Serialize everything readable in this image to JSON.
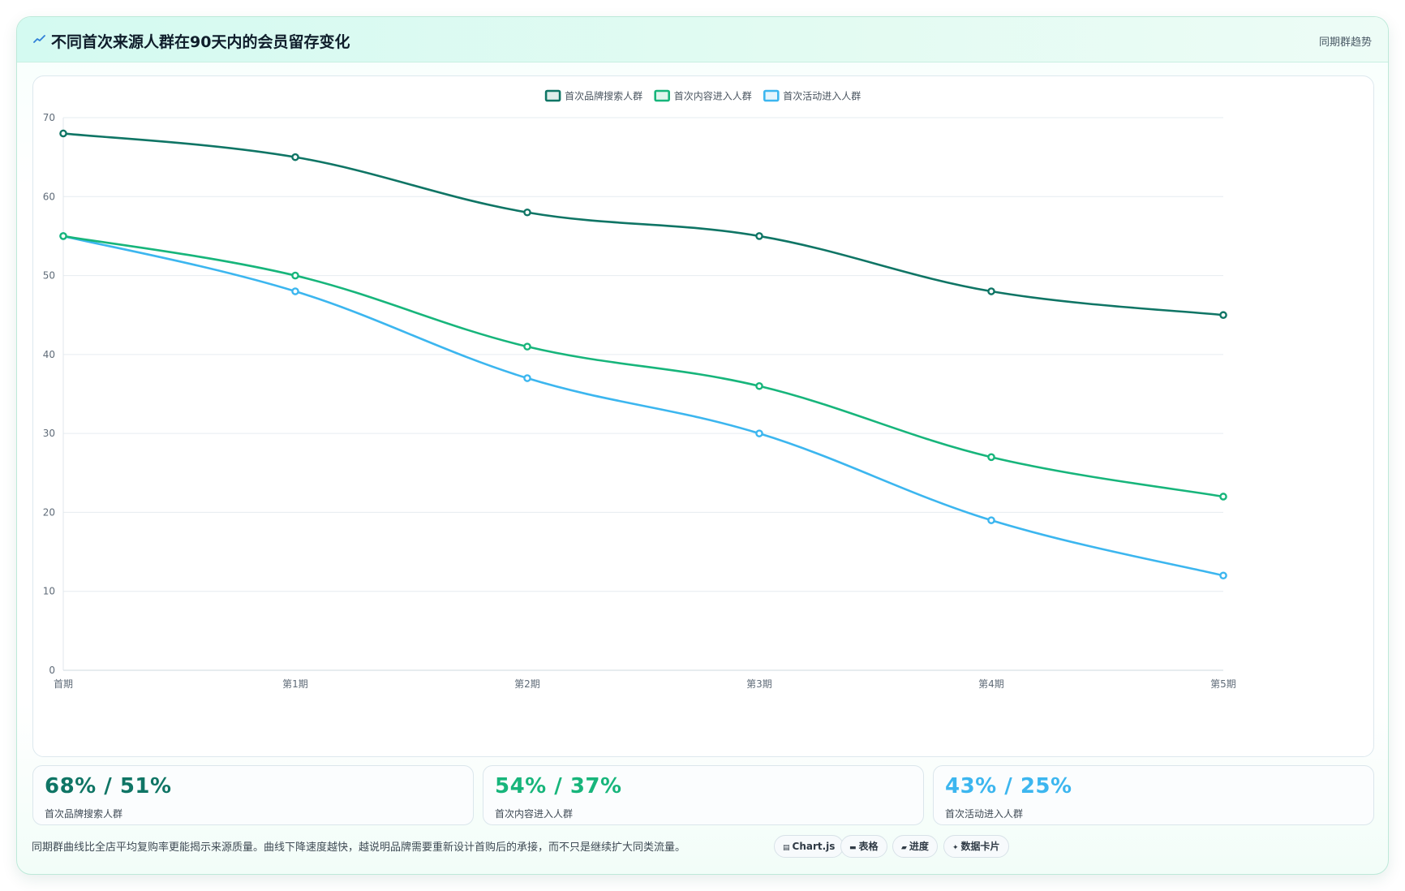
{
  "header": {
    "icon": "trend-line-icon",
    "title": "不同首次来源人群在90天内的会员留存变化",
    "tag": "同期群趋势"
  },
  "chart_data": {
    "type": "line",
    "categories": [
      "首期",
      "第1期",
      "第2期",
      "第3期",
      "第4期",
      "第5期"
    ],
    "series": [
      {
        "name": "首次品牌搜索人群",
        "color": "#0f7565",
        "values": [
          68,
          65,
          58,
          55,
          48,
          45
        ]
      },
      {
        "name": "首次内容进入人群",
        "color": "#17b57b",
        "values": [
          55,
          50,
          41,
          36,
          27,
          22
        ]
      },
      {
        "name": "首次活动进入人群",
        "color": "#3cb6ef",
        "values": [
          55,
          48,
          37,
          30,
          19,
          12
        ]
      }
    ],
    "ylim": [
      0,
      70
    ],
    "yticks": [
      0,
      10,
      20,
      30,
      40,
      50,
      60,
      70
    ],
    "grid": true,
    "legend": "top-center",
    "curve": "smooth"
  },
  "kpis": [
    {
      "value": "68% / 51%",
      "label": "首次品牌搜索人群",
      "color": "#0f7565"
    },
    {
      "value": "54% / 37%",
      "label": "首次内容进入人群",
      "color": "#17b57b"
    },
    {
      "value": "43% / 25%",
      "label": "首次活动进入人群",
      "color": "#3cb6ef"
    }
  ],
  "footer": {
    "note": "同期群曲线比全店平均复购率更能揭示来源质量。曲线下降速度越快，越说明品牌需要重新设计首购后的承接，而不只是继续扩大同类流量。",
    "chips": [
      {
        "icon": "chart-icon",
        "glyph": "▤",
        "label": "Chart.js"
      },
      {
        "icon": "table-icon",
        "glyph": "▬",
        "label": "表格"
      },
      {
        "icon": "progress-icon",
        "glyph": "▰",
        "label": "进度"
      },
      {
        "icon": "sparkle-icon",
        "glyph": "✦",
        "label": "数据卡片"
      }
    ]
  }
}
